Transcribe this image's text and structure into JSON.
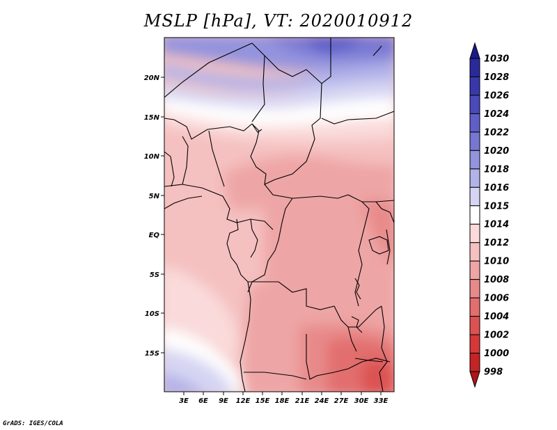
{
  "title": "MSLP [hPa], VT: 2020010912",
  "credit": "GrADS: IGES/COLA",
  "map": {
    "lon_labels": [
      "3E",
      "6E",
      "9E",
      "12E",
      "15E",
      "18E",
      "21E",
      "24E",
      "27E",
      "30E",
      "33E"
    ],
    "lat_labels": [
      "20N",
      "15N",
      "10N",
      "5N",
      "EQ",
      "5S",
      "10S",
      "15S"
    ]
  },
  "colorbar": {
    "levels": [
      "1030",
      "1028",
      "1026",
      "1024",
      "1022",
      "1020",
      "1018",
      "1016",
      "1015",
      "1014",
      "1012",
      "1010",
      "1008",
      "1006",
      "1004",
      "1002",
      "1000",
      "998"
    ],
    "colors": [
      "#1a1a8c",
      "#2a2a9c",
      "#3838ac",
      "#4a4abb",
      "#5f5fc8",
      "#7777d3",
      "#9393de",
      "#b3b3e9",
      "#d5d5f3",
      "#ffffff",
      "#fadada",
      "#f5c0c0",
      "#eea5a5",
      "#e88a8a",
      "#e26e6e",
      "#dc5252",
      "#d63838",
      "#c42424",
      "#b01414"
    ]
  }
}
